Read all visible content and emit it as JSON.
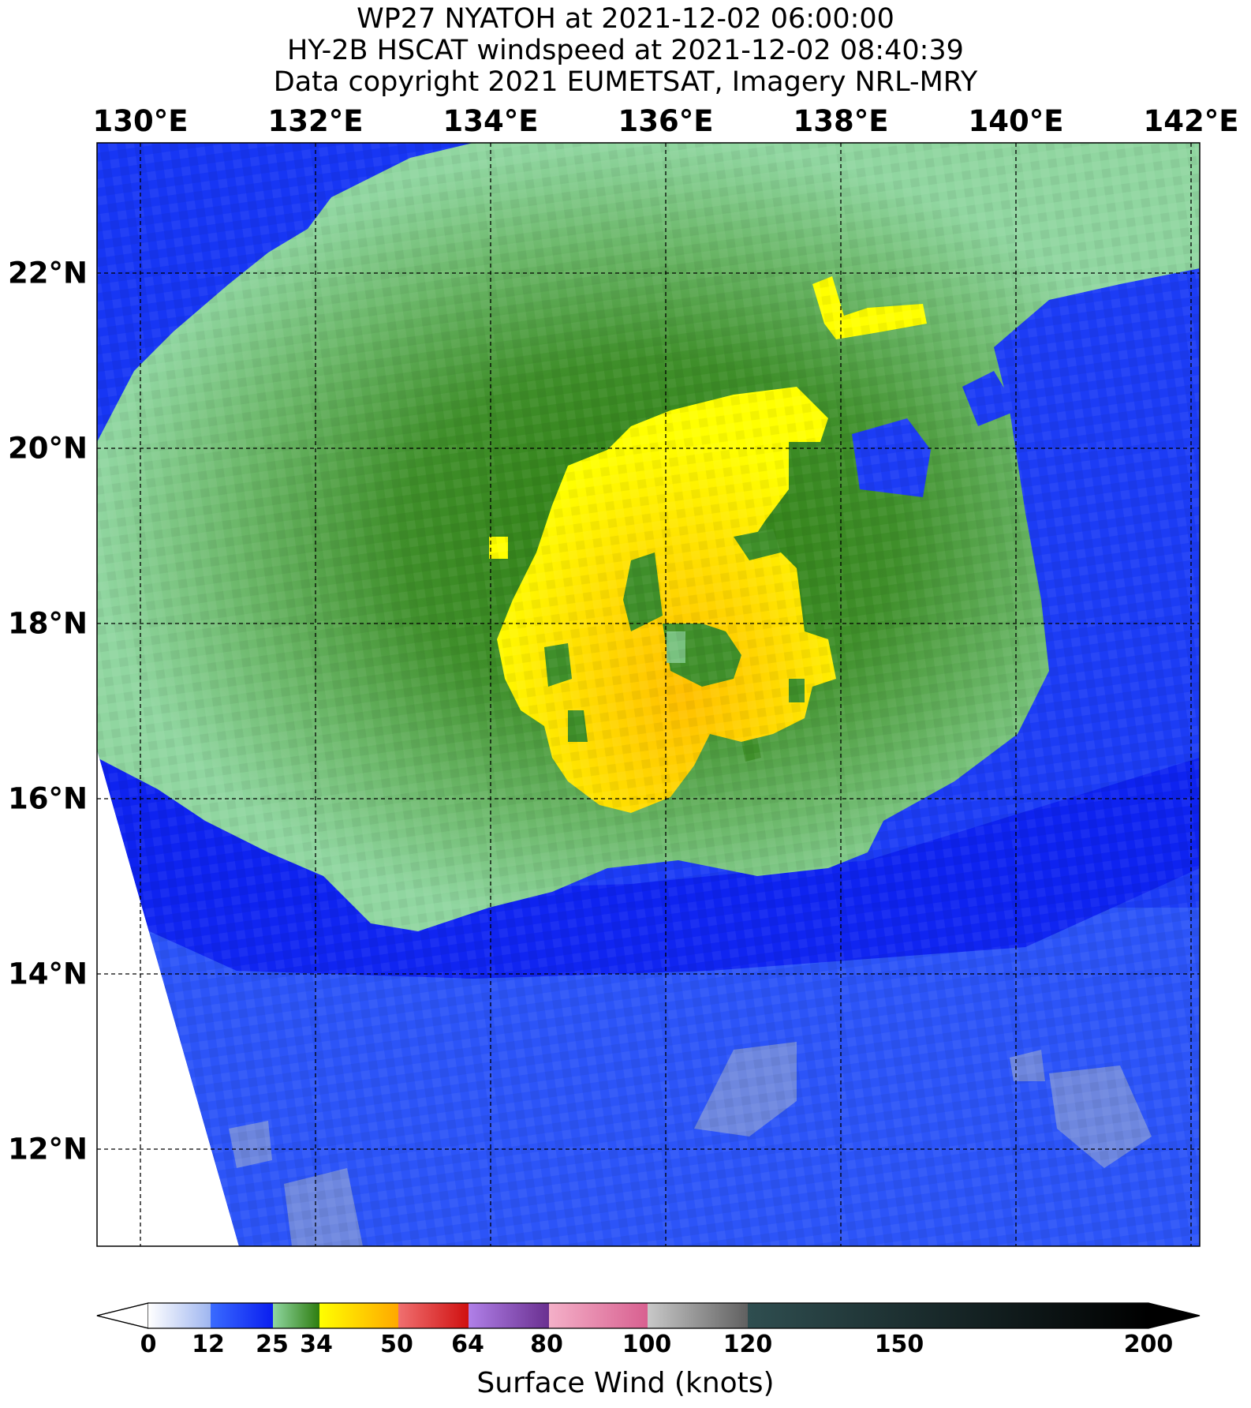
{
  "title": {
    "line1": "WP27 NYATOH at 2021-12-02 06:00:00",
    "line2": "HY-2B HSCAT windspeed at 2021-12-02 08:40:39",
    "line3": "Data copyright 2021 EUMETSAT, Imagery NRL-MRY"
  },
  "map": {
    "lon_labels": [
      "130°E",
      "132°E",
      "134°E",
      "136°E",
      "138°E",
      "140°E",
      "142°E"
    ],
    "lat_labels": [
      "22°N",
      "20°N",
      "18°N",
      "16°N",
      "14°N",
      "12°N"
    ],
    "lon_range": [
      129.5,
      142.1
    ],
    "lat_range": [
      10.9,
      23.5
    ],
    "gridlines": true,
    "storm_center": {
      "lon": 136.0,
      "lat": 17.7
    }
  },
  "colorbar": {
    "label": "Surface Wind (knots)",
    "ticks": [
      "0",
      "12",
      "25",
      "34",
      "50",
      "64",
      "80",
      "100",
      "120",
      "150",
      "200"
    ],
    "colors": {
      "calm": "#ffffff",
      "light": "#3a6bff",
      "moderate": "#0a1ef0",
      "gale_light": "#8fd6a0",
      "gale_strong": "#2e7d10",
      "storm": "#ffee00",
      "storm_strong": "#ffb000",
      "hurricane": "#e03030",
      "extreme": "#8040b0",
      "pink": "#e070a0",
      "gray": "#707070",
      "dark": "#000000"
    }
  }
}
